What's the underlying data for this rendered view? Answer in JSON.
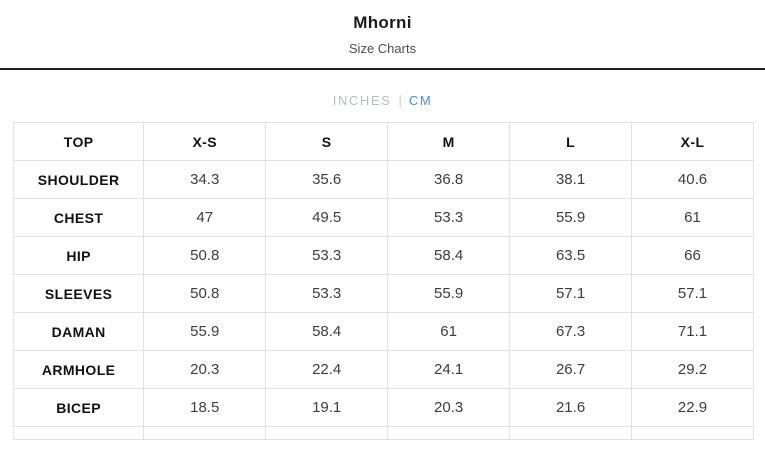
{
  "header": {
    "title": "Mhorni",
    "subtitle": "Size Charts"
  },
  "unit_toggle": {
    "inches_label": "INCHES",
    "divider": "|",
    "cm_label": "CM",
    "active_unit": "CM",
    "active_color": "#4292dd",
    "inactive_color": "#b6bcc2"
  },
  "size_table": {
    "columns": [
      "TOP",
      "X-S",
      "S",
      "M",
      "L",
      "X-L"
    ],
    "rows": [
      {
        "label": "SHOULDER",
        "values": [
          "34.3",
          "35.6",
          "36.8",
          "38.1",
          "40.6"
        ]
      },
      {
        "label": "CHEST",
        "values": [
          "47",
          "49.5",
          "53.3",
          "55.9",
          "61"
        ]
      },
      {
        "label": "HIP",
        "values": [
          "50.8",
          "53.3",
          "58.4",
          "63.5",
          "66"
        ]
      },
      {
        "label": "SLEEVES",
        "values": [
          "50.8",
          "53.3",
          "55.9",
          "57.1",
          "57.1"
        ]
      },
      {
        "label": "DAMAN",
        "values": [
          "55.9",
          "58.4",
          "61",
          "67.3",
          "71.1"
        ]
      },
      {
        "label": "ARMHOLE",
        "values": [
          "20.3",
          "22.4",
          "24.1",
          "26.7",
          "29.2"
        ]
      },
      {
        "label": "BICEP",
        "values": [
          "18.5",
          "19.1",
          "20.3",
          "21.6",
          "22.9"
        ]
      }
    ],
    "empty_trailing_row": true
  }
}
